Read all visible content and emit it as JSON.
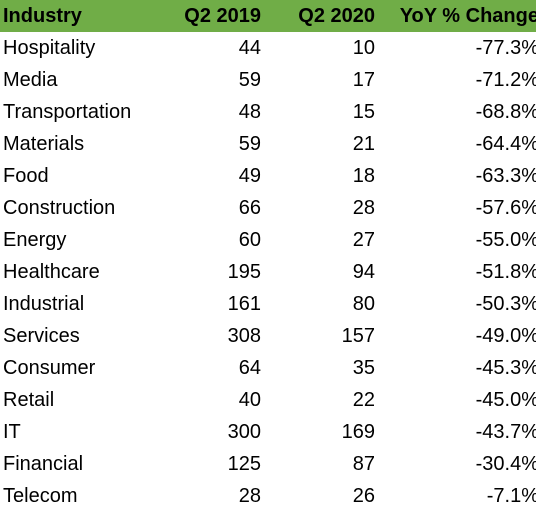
{
  "header_color": "#70ad47",
  "chart_data": {
    "type": "table",
    "columns": [
      "Industry",
      "Q2 2019",
      "Q2 2020",
      "YoY % Change"
    ],
    "rows": [
      [
        "Hospitality",
        "44",
        "10",
        "-77.3%"
      ],
      [
        "Media",
        "59",
        "17",
        "-71.2%"
      ],
      [
        "Transportation",
        "48",
        "15",
        "-68.8%"
      ],
      [
        "Materials",
        "59",
        "21",
        "-64.4%"
      ],
      [
        "Food",
        "49",
        "18",
        "-63.3%"
      ],
      [
        "Construction",
        "66",
        "28",
        "-57.6%"
      ],
      [
        "Energy",
        "60",
        "27",
        "-55.0%"
      ],
      [
        "Healthcare",
        "195",
        "94",
        "-51.8%"
      ],
      [
        "Industrial",
        "161",
        "80",
        "-50.3%"
      ],
      [
        "Services",
        "308",
        "157",
        "-49.0%"
      ],
      [
        "Consumer",
        "64",
        "35",
        "-45.3%"
      ],
      [
        "Retail",
        "40",
        "22",
        "-45.0%"
      ],
      [
        "IT",
        "300",
        "169",
        "-43.7%"
      ],
      [
        "Financial",
        "125",
        "87",
        "-30.4%"
      ],
      [
        "Telecom",
        "28",
        "26",
        "-7.1%"
      ]
    ]
  }
}
